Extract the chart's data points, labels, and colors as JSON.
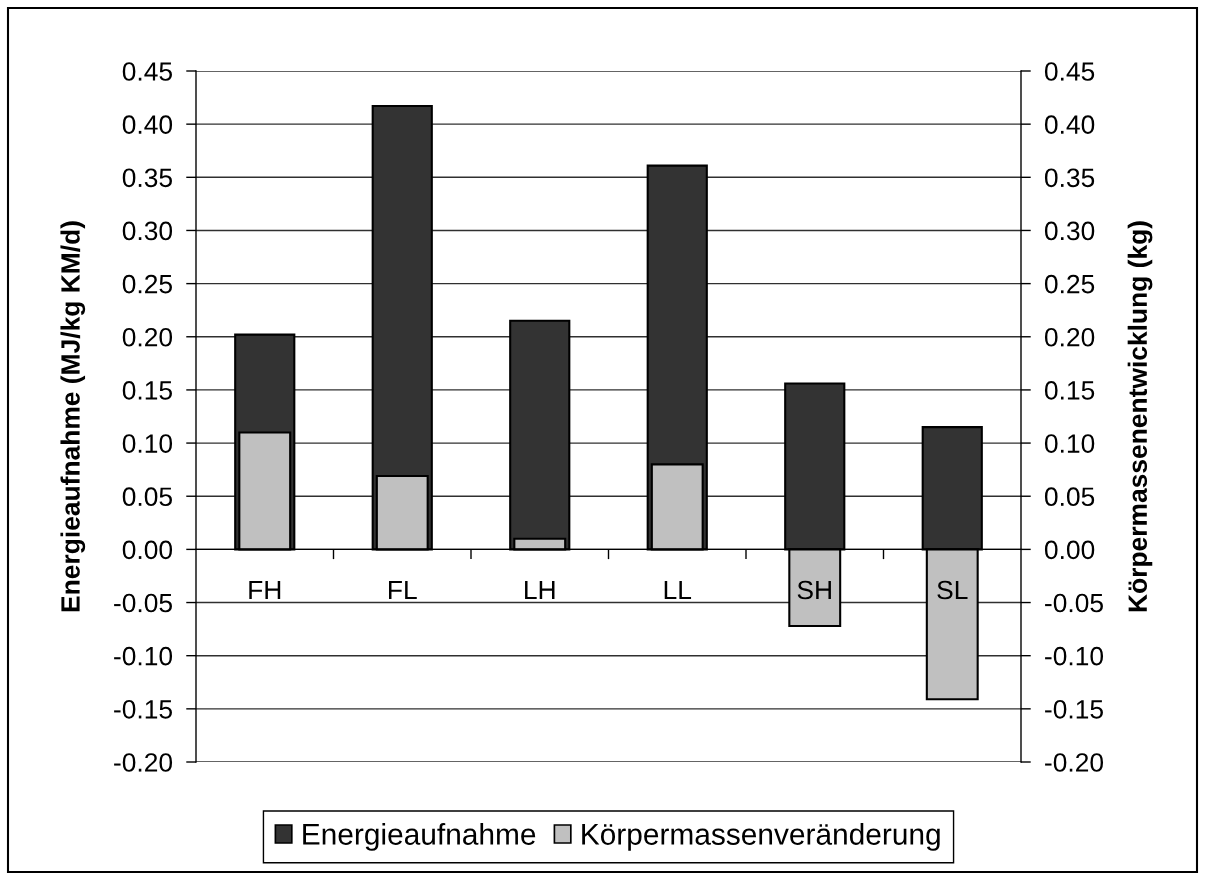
{
  "chart_data": {
    "type": "bar",
    "categories": [
      "FH",
      "FL",
      "LH",
      "LL",
      "SH",
      "SL"
    ],
    "ylabel": "Energieaufnahme (MJ/kg KM/d)",
    "y2label": "Körpermassenentwicklung (kg)",
    "series": [
      {
        "name": "Energieaufnahme",
        "color": "#333333",
        "values": [
          0.202,
          0.417,
          0.215,
          0.361,
          0.156,
          0.115
        ]
      },
      {
        "name": "Körpermassenveränderung",
        "color": "#c0c0c0",
        "axis": "y2",
        "values": [
          0.11,
          0.069,
          0.01,
          0.08,
          -0.072,
          -0.141
        ]
      }
    ],
    "ylim": [
      -0.2,
      0.45
    ],
    "yticks": [
      {
        "value": -0.2,
        "label": "-0.20"
      },
      {
        "value": -0.15,
        "label": "-0.15"
      },
      {
        "value": -0.1,
        "label": "-0.10"
      },
      {
        "value": -0.05,
        "label": "-0.05"
      },
      {
        "value": 0,
        "label": "0.00"
      },
      {
        "value": 0.05,
        "label": "0.05"
      },
      {
        "value": 0.1,
        "label": "0.10"
      },
      {
        "value": 0.15,
        "label": "0.15"
      },
      {
        "value": 0.2,
        "label": "0.20"
      },
      {
        "value": 0.25,
        "label": "0.25"
      },
      {
        "value": 0.3,
        "label": "0.30"
      },
      {
        "value": 0.35,
        "label": "0.35"
      },
      {
        "value": 0.4,
        "label": "0.40"
      },
      {
        "value": 0.45,
        "label": "0.45"
      }
    ],
    "y2lim": [
      -0.2,
      0.45
    ],
    "y2ticks": [
      {
        "value": -0.2,
        "label": "-0.20"
      },
      {
        "value": -0.15,
        "label": "-0.15"
      },
      {
        "value": -0.1,
        "label": "-0.10"
      },
      {
        "value": -0.05,
        "label": "-0.05"
      },
      {
        "value": 0,
        "label": "0.00"
      },
      {
        "value": 0.05,
        "label": "0.05"
      },
      {
        "value": 0.1,
        "label": "0.10"
      },
      {
        "value": 0.15,
        "label": "0.15"
      },
      {
        "value": 0.2,
        "label": "0.20"
      },
      {
        "value": 0.25,
        "label": "0.25"
      },
      {
        "value": 0.3,
        "label": "0.30"
      },
      {
        "value": 0.35,
        "label": "0.35"
      },
      {
        "value": 0.4,
        "label": "0.40"
      },
      {
        "value": 0.45,
        "label": "0.45"
      }
    ],
    "grid": "y",
    "legend": "bottom"
  }
}
